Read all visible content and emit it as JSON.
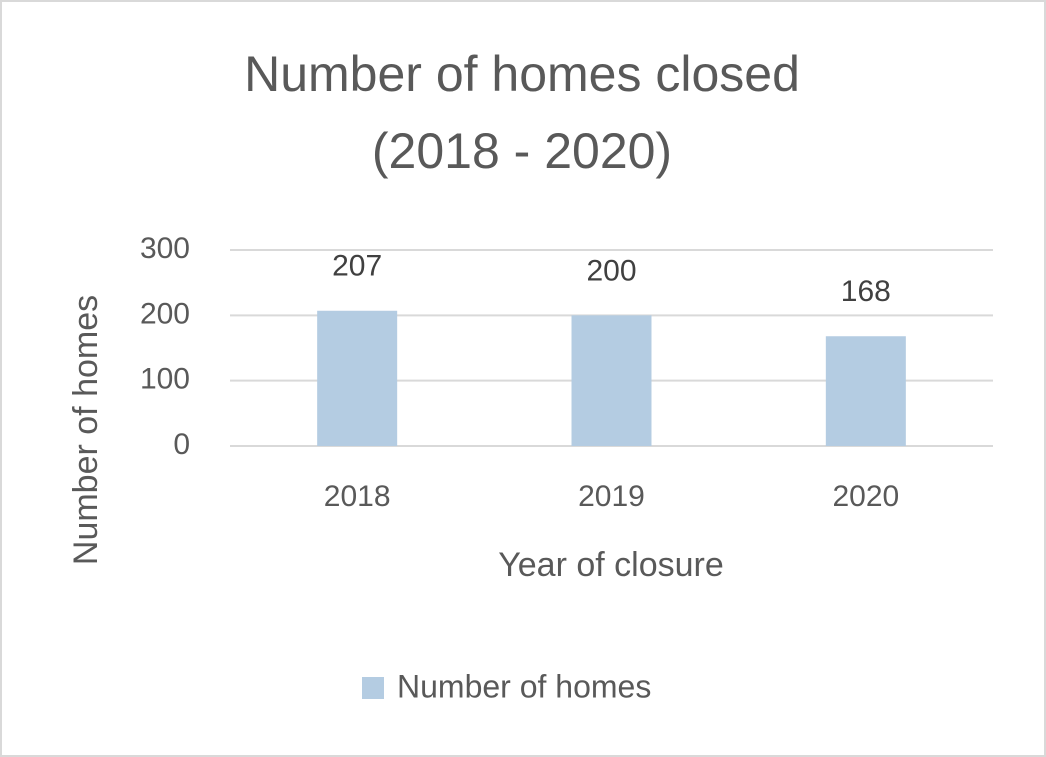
{
  "chart_data": {
    "type": "bar",
    "title": [
      "Number of homes closed",
      "(2018 - 2020)"
    ],
    "x_label": "Year of closure",
    "y_label": "Number of homes",
    "categories": [
      "2018",
      "2019",
      "2020"
    ],
    "series": [
      {
        "name": "Number of homes",
        "color": "#b4cce2",
        "values": [
          207,
          200,
          168
        ]
      }
    ],
    "ylim": [
      0,
      300
    ],
    "yticks": [
      0,
      100,
      200,
      300
    ],
    "grid": true,
    "legend": "bottom",
    "data_labels": true
  }
}
